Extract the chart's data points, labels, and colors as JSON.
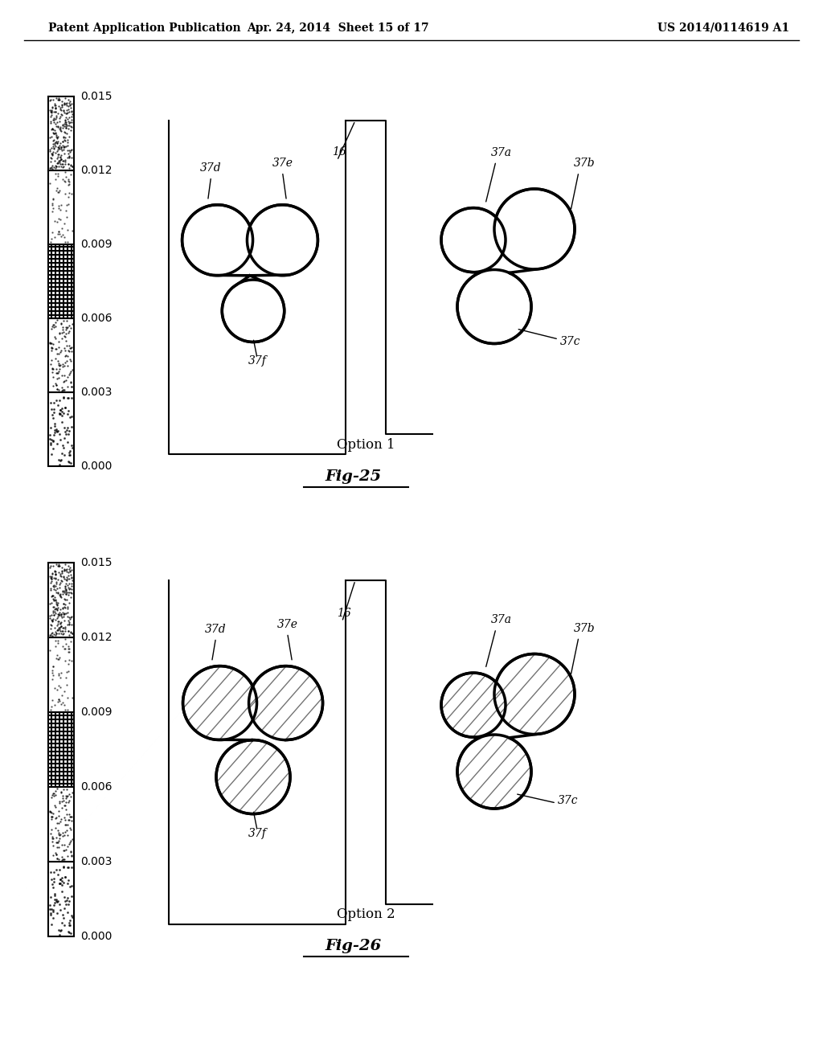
{
  "header_left": "Patent Application Publication",
  "header_mid": "Apr. 24, 2014  Sheet 15 of 17",
  "header_right": "US 2014/0114619 A1",
  "fig25_title": "Fig-25",
  "fig26_title": "Fig-26",
  "option1_label": "Option 1",
  "option2_label": "Option 2",
  "scale_ticks": [
    0.0,
    0.003,
    0.006,
    0.009,
    0.012,
    0.015
  ],
  "background": "#ffffff",
  "foreground": "#000000"
}
